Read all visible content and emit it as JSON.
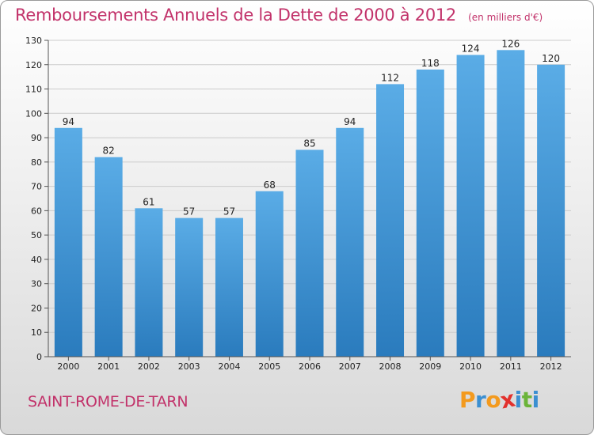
{
  "chart_data": {
    "type": "bar",
    "title": "Remboursements Annuels de la Dette de 2000 à 2012",
    "units": "(en milliers d'€)",
    "xlabel": "",
    "ylabel": "",
    "categories": [
      "2000",
      "2001",
      "2002",
      "2003",
      "2004",
      "2005",
      "2006",
      "2007",
      "2008",
      "2009",
      "2010",
      "2011",
      "2012"
    ],
    "values": [
      94,
      82,
      61,
      57,
      57,
      68,
      85,
      94,
      112,
      118,
      124,
      126,
      120
    ],
    "ylim": [
      0,
      130
    ],
    "yticks": [
      0,
      10,
      20,
      30,
      40,
      50,
      60,
      70,
      80,
      90,
      100,
      110,
      120,
      130
    ],
    "grid": true,
    "legend": "none",
    "colors": {
      "bar_top": "#5aace6",
      "bar_bottom": "#2a7bbd",
      "title": "#c2326a",
      "grid": "#cccccc"
    }
  },
  "footer": {
    "commune": "SAINT-ROME-DE-TARN",
    "logo": {
      "letters": [
        "P",
        "r",
        "o",
        "x",
        "i",
        "t",
        "i"
      ],
      "colors": [
        "#f39a1e",
        "#3b8fd1",
        "#f39a1e",
        "#e2312d",
        "#3b8fd1",
        "#6bb43a",
        "#3b8fd1"
      ]
    }
  }
}
